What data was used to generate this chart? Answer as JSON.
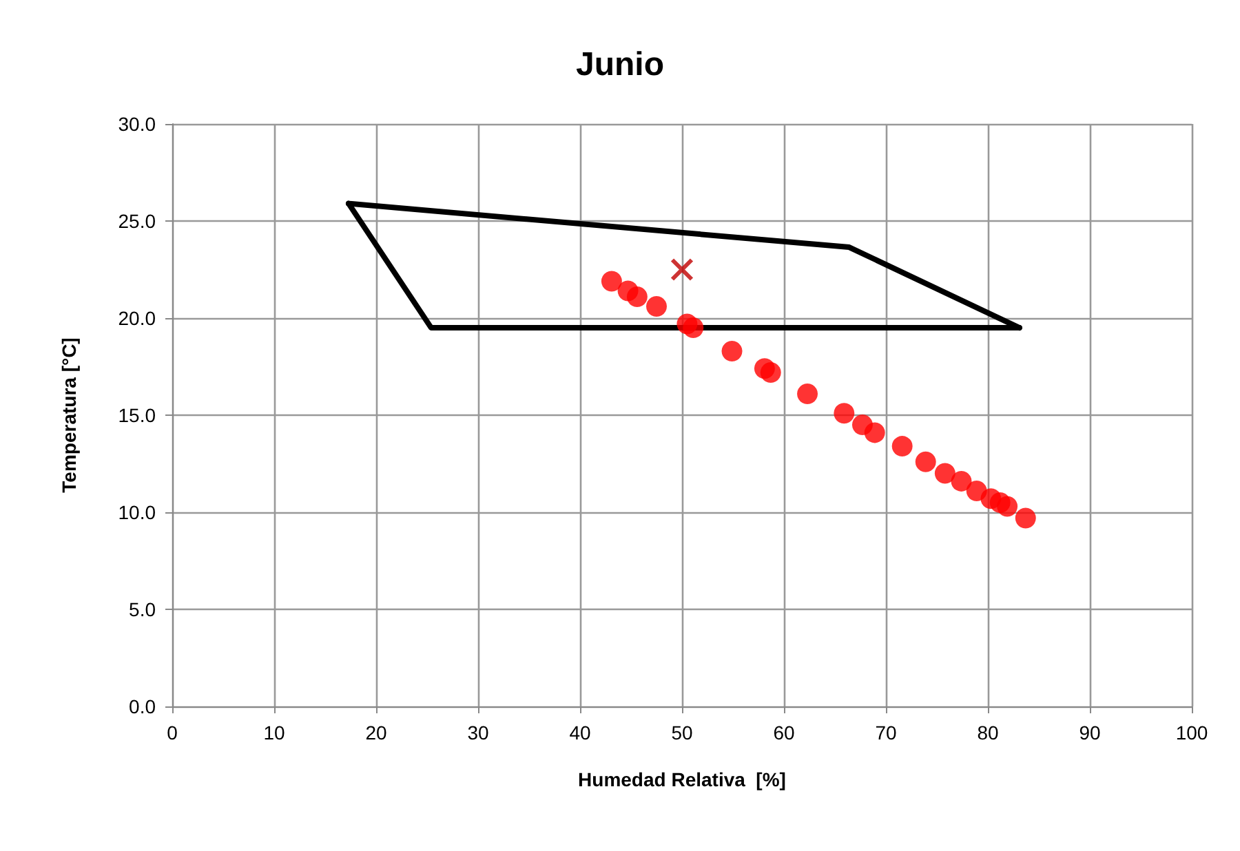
{
  "chart_data": {
    "type": "scatter",
    "title": "Junio",
    "xlabel": "Humedad Relativa  [%]",
    "ylabel": "Temperatura [°C]",
    "xlim": [
      0,
      100
    ],
    "xticks": [
      0,
      10,
      20,
      30,
      40,
      50,
      60,
      70,
      80,
      90,
      100
    ],
    "ylim": [
      0,
      30
    ],
    "yticks": [
      {
        "value": 0,
        "label": "0.0"
      },
      {
        "value": 5,
        "label": "5.0"
      },
      {
        "value": 10,
        "label": "10.0"
      },
      {
        "value": 15,
        "label": "15.0"
      },
      {
        "value": 20,
        "label": "20.0"
      },
      {
        "value": 25,
        "label": "25.0"
      },
      {
        "value": 30,
        "label": "30.0"
      }
    ],
    "grid": true,
    "series": [
      {
        "type": "line",
        "color": "#000000",
        "marker": "none",
        "line_style": "solid",
        "x": [
          17.3,
          25.4,
          83.1
        ],
        "values": [
          25.9,
          19.5,
          19.5
        ]
      },
      {
        "type": "line",
        "color": "#000000",
        "marker": "none",
        "line_style": "solid",
        "x": [
          17.3,
          66.4,
          83.1
        ],
        "values": [
          25.9,
          23.65,
          19.5
        ]
      },
      {
        "color": "#ff0000",
        "marker": "circle",
        "x": [
          43.1,
          44.7,
          45.6,
          47.5,
          50.5,
          51.1,
          54.9,
          58.1,
          58.7,
          62.3,
          65.9,
          67.7,
          68.9,
          71.6,
          73.9,
          75.8,
          77.4,
          78.9,
          80.3,
          81.2,
          81.9,
          83.7
        ],
        "values": [
          21.9,
          21.4,
          21.1,
          20.6,
          19.7,
          19.5,
          18.3,
          17.4,
          17.2,
          16.1,
          15.1,
          14.5,
          14.1,
          13.4,
          12.6,
          12.0,
          11.6,
          11.1,
          10.7,
          10.5,
          10.3,
          9.7
        ]
      },
      {
        "color": "#c00000",
        "marker": "cross",
        "x": [
          50
        ],
        "values": [
          22.5
        ]
      }
    ]
  }
}
